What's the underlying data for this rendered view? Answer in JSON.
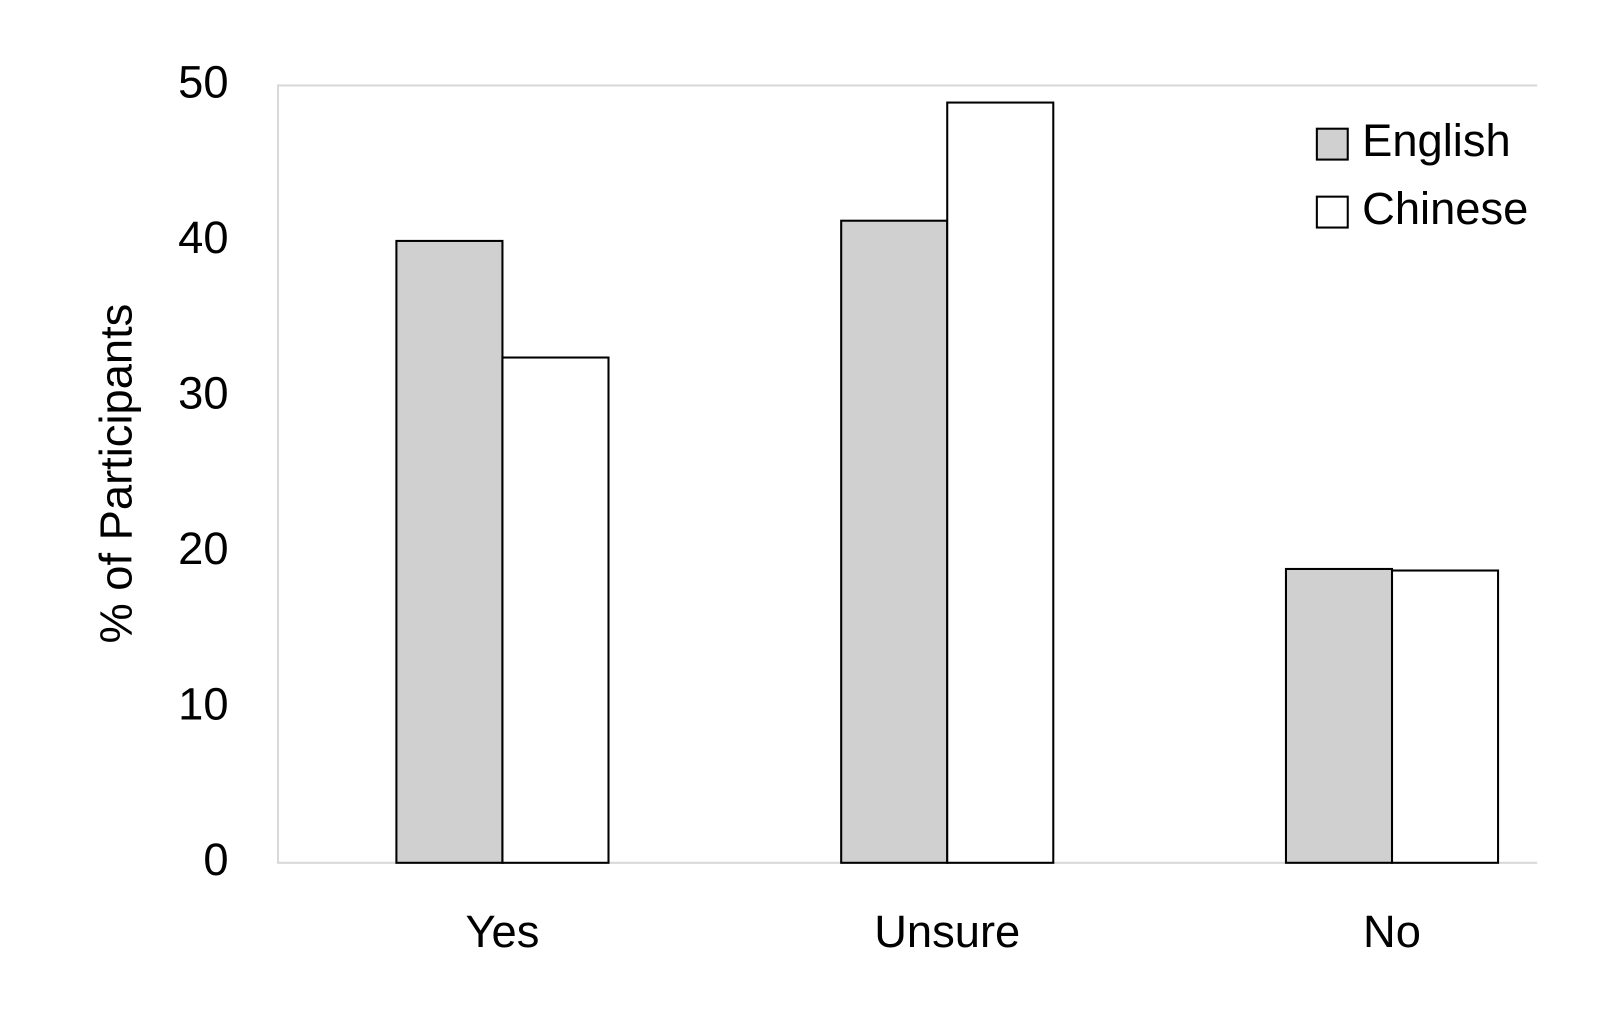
{
  "chart_data": {
    "type": "bar",
    "y_label": "% of Participants",
    "categories": [
      "Yes",
      "Unsure",
      "No"
    ],
    "series": [
      {
        "name": "English",
        "color": "#d0d0d0",
        "values": [
          40,
          41.3,
          18.9
        ]
      },
      {
        "name": "Chinese",
        "color": "#ffffff",
        "values": [
          32.5,
          48.9,
          18.8
        ]
      }
    ],
    "ylim": [
      0,
      50
    ],
    "yticks": [
      0,
      10,
      20,
      30,
      40,
      50
    ],
    "grid": false,
    "legend": "top-right"
  }
}
